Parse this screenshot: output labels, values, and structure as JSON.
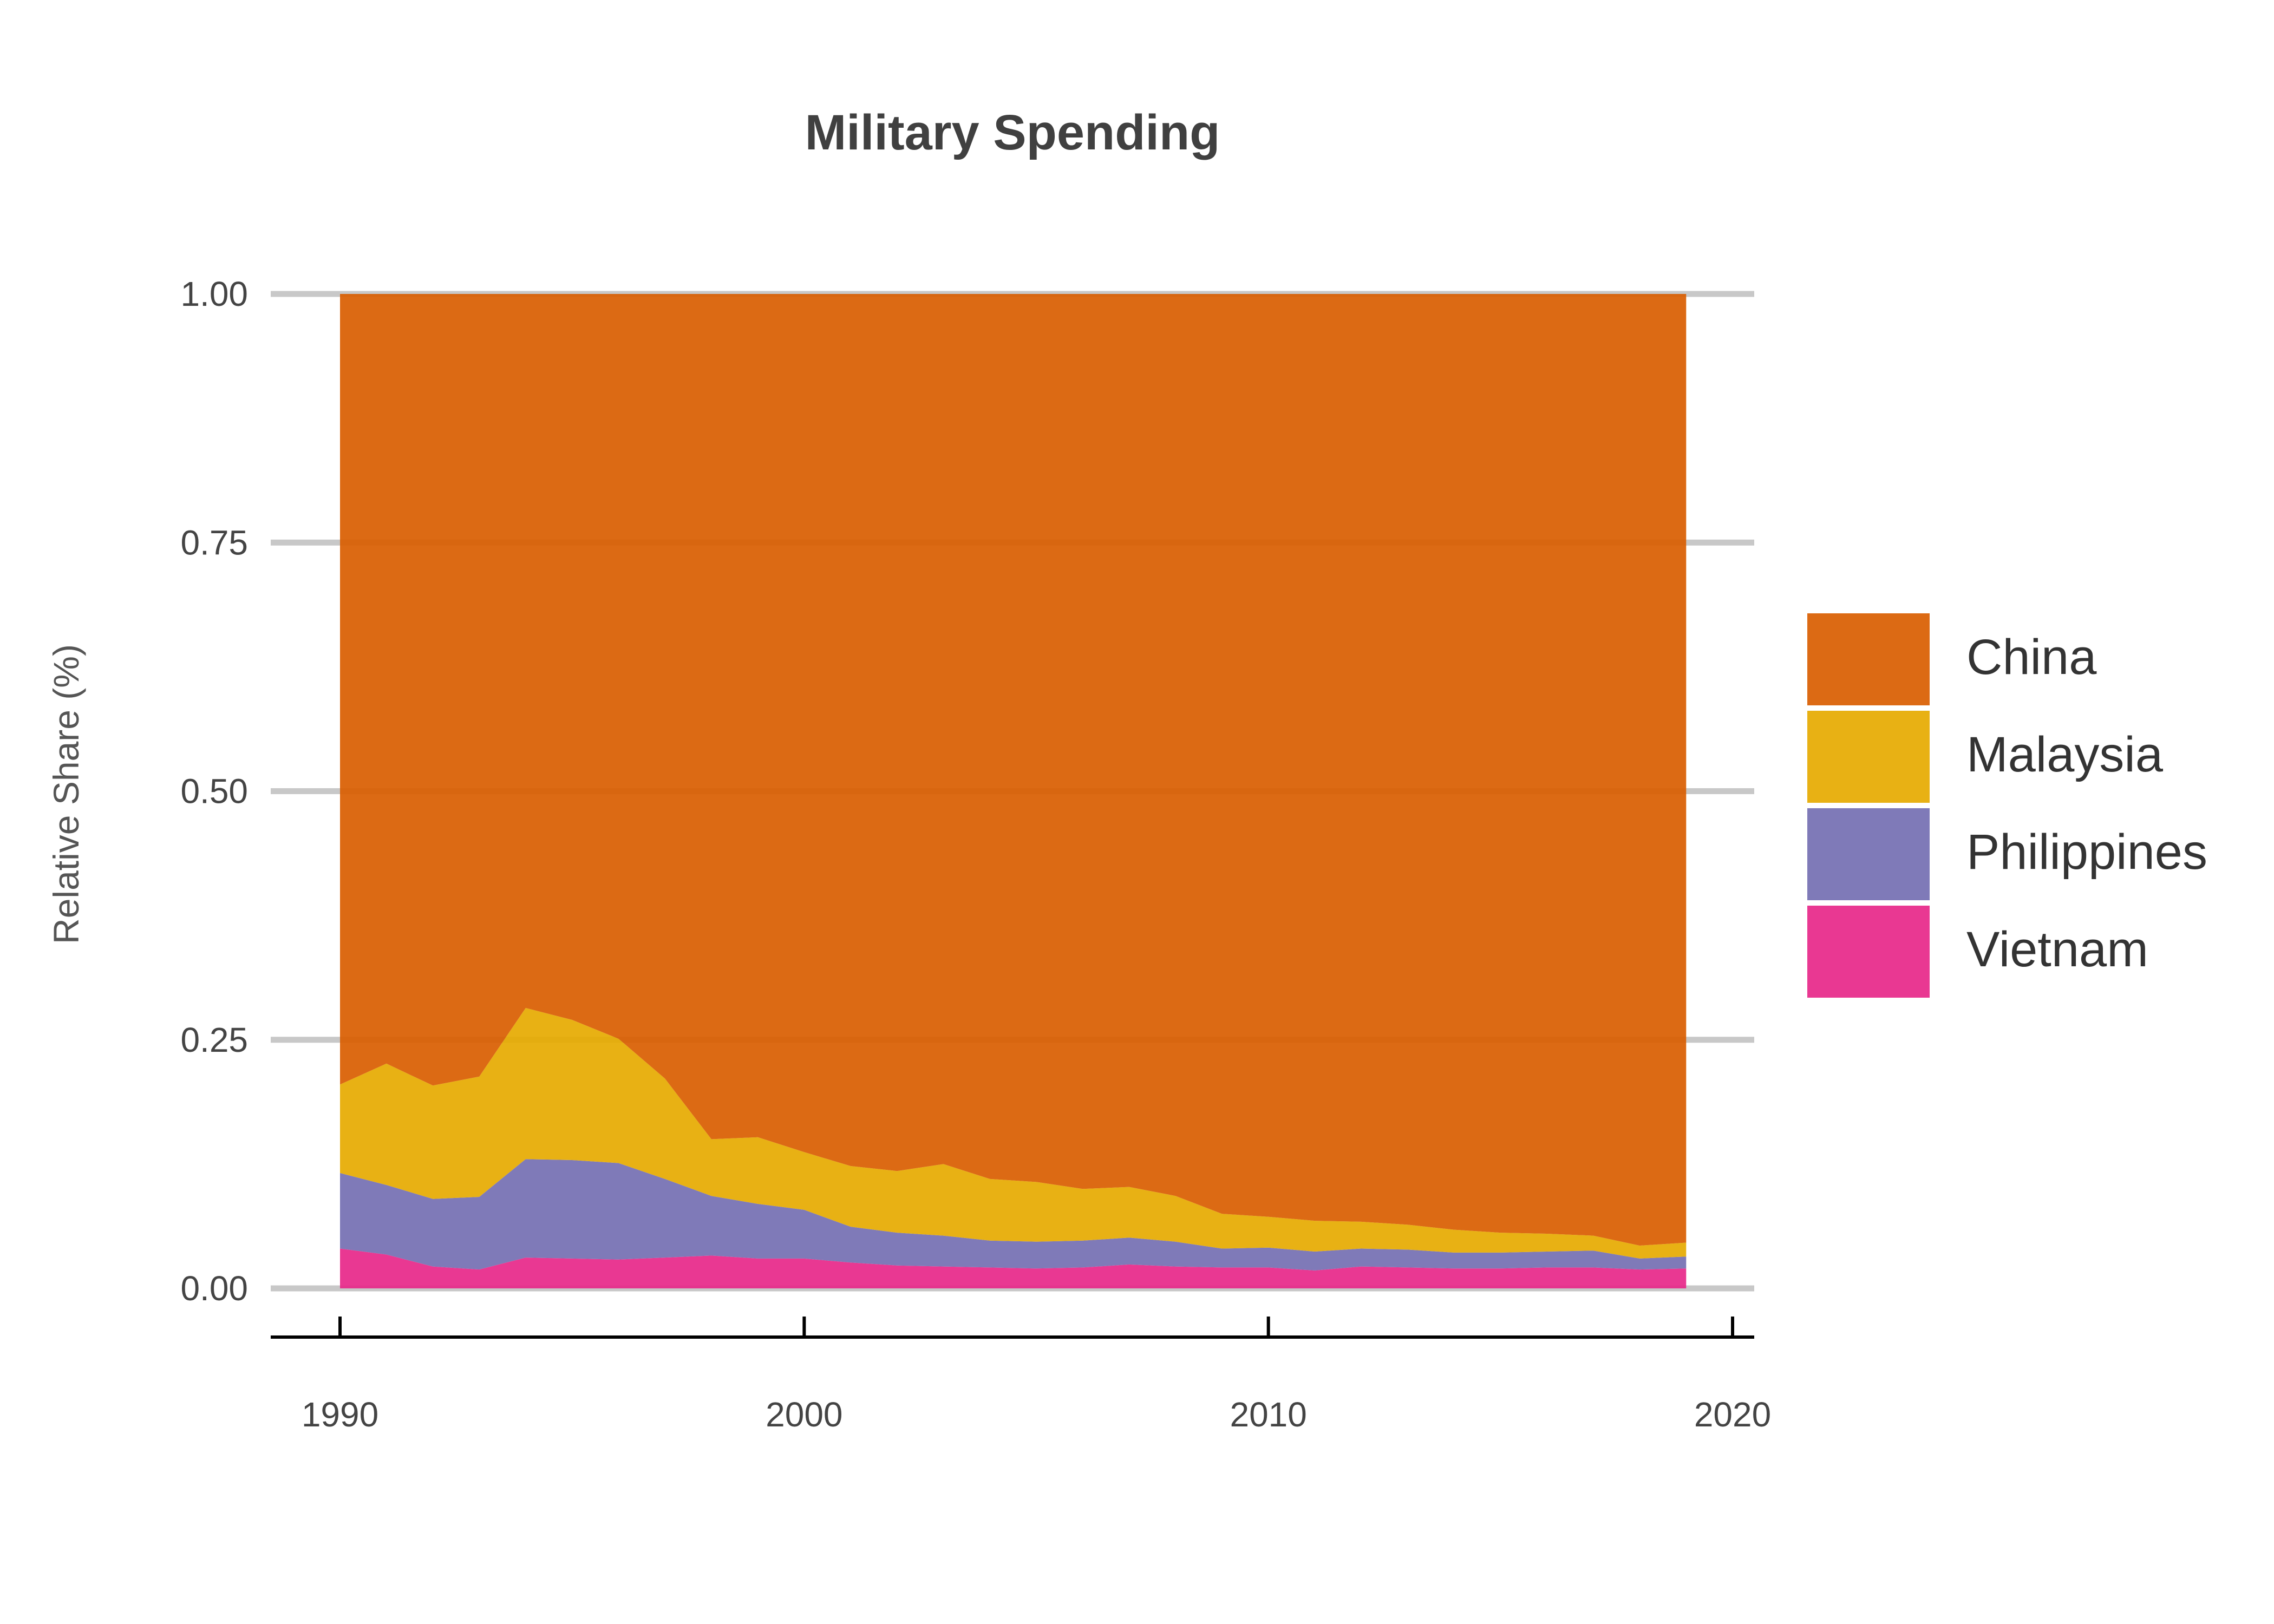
{
  "chart_data": {
    "type": "area",
    "stacked": true,
    "normalized": true,
    "title": "Military Spending",
    "xlabel": "",
    "ylabel": "Relative Share (%)",
    "xlim": [
      1990,
      2019
    ],
    "ylim": [
      0,
      1
    ],
    "x_ticks": [
      1990,
      2000,
      2010,
      2020
    ],
    "y_ticks": [
      "0.00",
      "0.25",
      "0.50",
      "0.75",
      "1.00"
    ],
    "grid": "horizontal",
    "legend_position": "right",
    "x": [
      1990,
      1991,
      1992,
      1993,
      1994,
      1995,
      1996,
      1997,
      1998,
      1999,
      2000,
      2001,
      2002,
      2003,
      2004,
      2005,
      2006,
      2007,
      2008,
      2009,
      2010,
      2011,
      2012,
      2013,
      2014,
      2015,
      2016,
      2017,
      2018,
      2019
    ],
    "series": [
      {
        "name": "Vietnam",
        "color": "#E7298A",
        "values": [
          0.04,
          0.034,
          0.022,
          0.019,
          0.031,
          0.03,
          0.029,
          0.031,
          0.033,
          0.03,
          0.03,
          0.026,
          0.023,
          0.022,
          0.021,
          0.02,
          0.021,
          0.024,
          0.022,
          0.021,
          0.021,
          0.018,
          0.022,
          0.021,
          0.02,
          0.02,
          0.021,
          0.021,
          0.019,
          0.02
        ]
      },
      {
        "name": "Philippines",
        "color": "#7570B3",
        "values": [
          0.076,
          0.07,
          0.068,
          0.073,
          0.099,
          0.099,
          0.097,
          0.079,
          0.06,
          0.055,
          0.049,
          0.036,
          0.033,
          0.031,
          0.027,
          0.027,
          0.027,
          0.027,
          0.025,
          0.019,
          0.02,
          0.019,
          0.018,
          0.018,
          0.016,
          0.016,
          0.016,
          0.017,
          0.011,
          0.012
        ]
      },
      {
        "name": "Malaysia",
        "color": "#E6AB02",
        "values": [
          0.089,
          0.122,
          0.114,
          0.121,
          0.152,
          0.141,
          0.125,
          0.101,
          0.057,
          0.067,
          0.058,
          0.061,
          0.062,
          0.072,
          0.062,
          0.06,
          0.052,
          0.051,
          0.046,
          0.035,
          0.031,
          0.031,
          0.027,
          0.025,
          0.023,
          0.02,
          0.018,
          0.015,
          0.013,
          0.014
        ]
      },
      {
        "name": "China",
        "color": "#D95F02",
        "values": [
          0.795,
          0.774,
          0.796,
          0.787,
          0.718,
          0.73,
          0.749,
          0.789,
          0.85,
          0.848,
          0.863,
          0.877,
          0.882,
          0.875,
          0.89,
          0.893,
          0.9,
          0.898,
          0.907,
          0.925,
          0.928,
          0.932,
          0.933,
          0.936,
          0.941,
          0.944,
          0.945,
          0.947,
          0.957,
          0.954
        ]
      }
    ]
  },
  "legend": [
    {
      "label": "China",
      "color": "#D95F02"
    },
    {
      "label": "Malaysia",
      "color": "#E6AB02"
    },
    {
      "label": "Philippines",
      "color": "#7570B3"
    },
    {
      "label": "Vietnam",
      "color": "#E7298A"
    }
  ]
}
